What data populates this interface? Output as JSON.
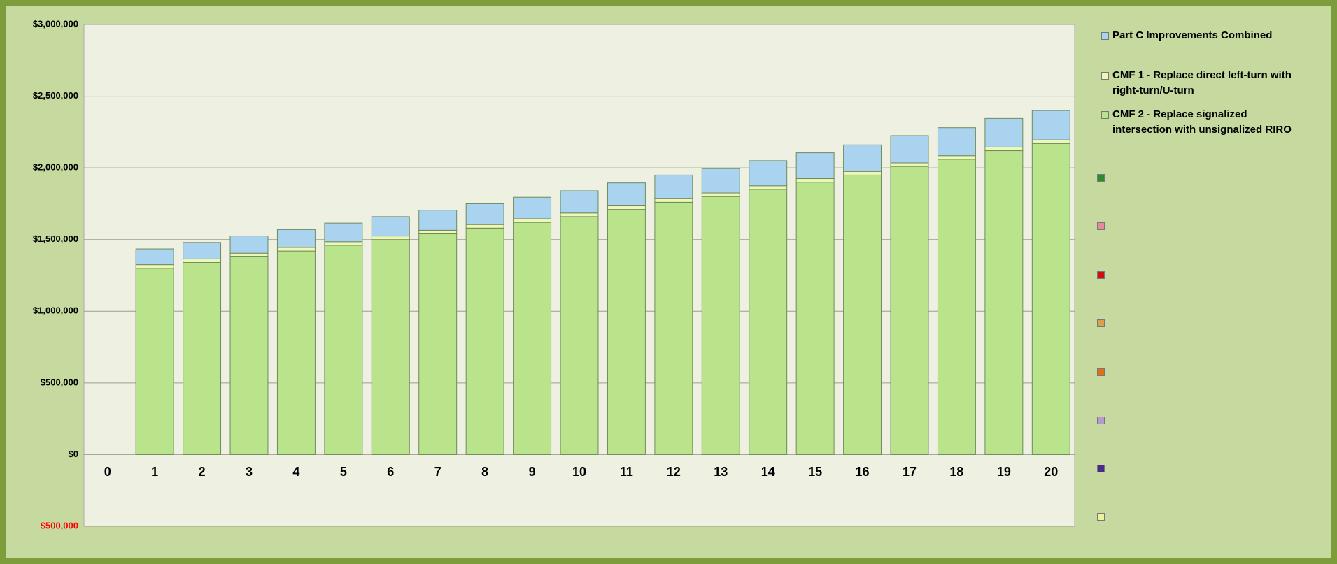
{
  "chart_data": {
    "type": "stacked_bar",
    "categories": [
      "0",
      "1",
      "2",
      "3",
      "4",
      "5",
      "6",
      "7",
      "8",
      "9",
      "10",
      "11",
      "12",
      "13",
      "14",
      "15",
      "16",
      "17",
      "18",
      "19",
      "20"
    ],
    "series": [
      {
        "name": "CMF 2 - Replace signalized intersection with unsignalized RIRO",
        "color": "#b9e48c",
        "values": [
          null,
          1300000,
          1340000,
          1380000,
          1420000,
          1460000,
          1500000,
          1540000,
          1580000,
          1620000,
          1660000,
          1710000,
          1760000,
          1800000,
          1850000,
          1900000,
          1950000,
          2010000,
          2060000,
          2120000,
          2170000
        ]
      },
      {
        "name": "CMF 1 - Replace direct left-turn with right-turn/U-turn",
        "color": "#eef7b8",
        "values": [
          null,
          25000,
          25000,
          25000,
          25000,
          25000,
          25000,
          25000,
          25000,
          25000,
          25000,
          25000,
          25000,
          25000,
          25000,
          25000,
          25000,
          25000,
          25000,
          25000,
          25000
        ]
      },
      {
        "name": "Part C Improvements Combined",
        "color": "#a9d3ef",
        "values": [
          null,
          110000,
          115000,
          120000,
          125000,
          130000,
          135000,
          140000,
          145000,
          150000,
          155000,
          160000,
          165000,
          170000,
          175000,
          180000,
          185000,
          190000,
          195000,
          200000,
          205000
        ]
      }
    ],
    "ylim": [
      -500000,
      3000000
    ],
    "yticks": [
      {
        "value": -500000,
        "label": "$500,000"
      },
      {
        "value": 0,
        "label": "$0"
      },
      {
        "value": 500000,
        "label": "$500,000"
      },
      {
        "value": 1000000,
        "label": "$1,000,000"
      },
      {
        "value": 1500000,
        "label": "$1,500,000"
      },
      {
        "value": 2000000,
        "label": "$2,000,000"
      },
      {
        "value": 2500000,
        "label": "$2,500,000"
      },
      {
        "value": 3000000,
        "label": "$3,000,000"
      }
    ],
    "grid": true,
    "negative_tick_color": "#ff0000",
    "legend": "right"
  }
}
